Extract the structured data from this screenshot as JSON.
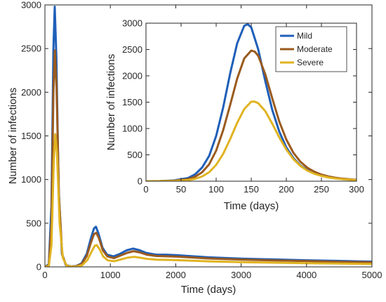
{
  "chart_data": [
    {
      "type": "line",
      "xlabel": "Time (days)",
      "ylabel": "Number of infections",
      "xlim": [
        0,
        5000
      ],
      "ylim": [
        0,
        3000
      ],
      "xticks": [
        0,
        1000,
        2000,
        3000,
        4000,
        5000
      ],
      "yticks": [
        0,
        500,
        1000,
        1500,
        2000,
        2500,
        3000
      ],
      "grid": false,
      "series": [
        {
          "name": "Mild",
          "color": "#1f5fb8",
          "x": [
            0,
            60,
            100,
            130,
            150,
            175,
            210,
            260,
            320,
            400,
            480,
            560,
            640,
            700,
            750,
            780,
            820,
            880,
            950,
            1050,
            1150,
            1250,
            1350,
            1450,
            1550,
            1700,
            1850,
            2000,
            2200,
            2500,
            3000,
            3500,
            4000,
            4500,
            5000
          ],
          "y": [
            0,
            30,
            700,
            2500,
            2980,
            2400,
            900,
            150,
            20,
            5,
            10,
            40,
            150,
            320,
            440,
            460,
            380,
            220,
            140,
            120,
            150,
            190,
            210,
            190,
            160,
            140,
            140,
            135,
            125,
            110,
            95,
            85,
            75,
            68,
            60
          ]
        },
        {
          "name": "Moderate",
          "color": "#9a5a1e",
          "x": [
            0,
            60,
            100,
            130,
            152,
            178,
            215,
            265,
            325,
            400,
            480,
            560,
            640,
            700,
            750,
            785,
            825,
            885,
            955,
            1055,
            1155,
            1255,
            1355,
            1455,
            1555,
            1705,
            1855,
            2005,
            2200,
            2500,
            3000,
            3500,
            4000,
            4500,
            5000
          ],
          "y": [
            0,
            20,
            500,
            2000,
            2480,
            2050,
            800,
            140,
            18,
            4,
            8,
            32,
            125,
            270,
            375,
            390,
            330,
            190,
            120,
            100,
            130,
            160,
            180,
            165,
            140,
            125,
            122,
            118,
            110,
            97,
            83,
            74,
            66,
            58,
            52
          ]
        },
        {
          "name": "Severe",
          "color": "#e0b321",
          "x": [
            0,
            60,
            100,
            135,
            158,
            185,
            225,
            275,
            335,
            410,
            490,
            570,
            650,
            710,
            760,
            790,
            830,
            890,
            960,
            1060,
            1160,
            1260,
            1360,
            1460,
            1560,
            1710,
            1860,
            2010,
            2200,
            2500,
            3000,
            3500,
            4000,
            4500,
            5000
          ],
          "y": [
            0,
            10,
            250,
            1200,
            1520,
            1300,
            500,
            100,
            12,
            3,
            5,
            20,
            80,
            170,
            240,
            250,
            210,
            120,
            75,
            65,
            85,
            105,
            115,
            105,
            92,
            82,
            80,
            77,
            72,
            63,
            54,
            48,
            42,
            38,
            33
          ]
        }
      ]
    },
    {
      "type": "line",
      "xlabel": "Time (days)",
      "ylabel": "Number of infections",
      "xlim": [
        0,
        300
      ],
      "ylim": [
        0,
        3000
      ],
      "xticks": [
        0,
        50,
        100,
        150,
        200,
        250,
        300
      ],
      "yticks": [
        0,
        500,
        1000,
        1500,
        2000,
        2500,
        3000
      ],
      "grid": false,
      "legend": "top-right",
      "legend_entries": [
        "Mild",
        "Moderate",
        "Severe"
      ],
      "series": [
        {
          "name": "Mild",
          "color": "#1f5fb8",
          "x": [
            0,
            20,
            40,
            60,
            70,
            80,
            90,
            100,
            110,
            120,
            130,
            140,
            145,
            150,
            160,
            170,
            180,
            190,
            200,
            210,
            220,
            230,
            240,
            250,
            260,
            270,
            280,
            290,
            300
          ],
          "y": [
            0,
            3,
            15,
            60,
            130,
            260,
            480,
            860,
            1400,
            2050,
            2620,
            2950,
            2980,
            2920,
            2500,
            1900,
            1350,
            940,
            640,
            440,
            300,
            210,
            150,
            105,
            75,
            55,
            40,
            30,
            22
          ]
        },
        {
          "name": "Moderate",
          "color": "#9a5a1e",
          "x": [
            0,
            20,
            40,
            60,
            70,
            80,
            90,
            100,
            110,
            120,
            130,
            140,
            150,
            155,
            160,
            170,
            180,
            190,
            200,
            210,
            220,
            230,
            240,
            250,
            260,
            270,
            280,
            290,
            300
          ],
          "y": [
            0,
            2,
            10,
            40,
            85,
            170,
            320,
            580,
            970,
            1450,
            1950,
            2330,
            2480,
            2460,
            2380,
            2030,
            1570,
            1130,
            790,
            540,
            370,
            255,
            180,
            125,
            90,
            65,
            48,
            36,
            27
          ]
        },
        {
          "name": "Severe",
          "color": "#e0b321",
          "x": [
            0,
            20,
            40,
            60,
            70,
            80,
            90,
            100,
            110,
            120,
            130,
            140,
            150,
            155,
            160,
            170,
            180,
            190,
            200,
            210,
            220,
            230,
            240,
            250,
            260,
            270,
            280,
            290,
            300
          ],
          "y": [
            0,
            1,
            5,
            20,
            45,
            90,
            170,
            310,
            520,
            800,
            1110,
            1370,
            1510,
            1510,
            1480,
            1330,
            1090,
            830,
            600,
            420,
            290,
            200,
            140,
            100,
            72,
            52,
            38,
            28,
            21
          ]
        }
      ]
    }
  ]
}
